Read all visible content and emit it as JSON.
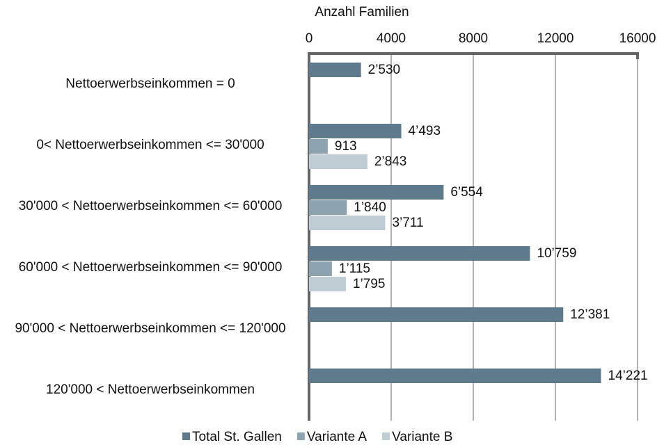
{
  "chart_data": {
    "type": "hbar",
    "x_label": "Anzahl Familien",
    "categories": [
      "Nettoerwerbseinkommen = 0",
      "0< Nettoerwerbseinkommen <= 30'000",
      "30'000 < Nettoerwerbseinkommen <= 60'000",
      "60'000 < Nettoerwerbseinkommen <= 90'000",
      "90'000 < Nettoerwerbseinkommen <= 120'000",
      "120'000 < Nettoerwerbseinkommen"
    ],
    "series": [
      {
        "name": "Total St. Gallen",
        "color": "#5f7a8c",
        "values": [
          2530,
          4493,
          6554,
          10759,
          12381,
          14221
        ],
        "value_labels": [
          "2’530",
          "4’493",
          "6’554",
          "10’759",
          "12’381",
          "14’221"
        ]
      },
      {
        "name": "Variante A",
        "color": "#8ea3b0",
        "values": [
          null,
          913,
          1840,
          1115,
          null,
          null
        ],
        "value_labels": [
          null,
          "913",
          "1’840",
          "1’115",
          null,
          null
        ]
      },
      {
        "name": "Variante B",
        "color": "#c0ccd4",
        "values": [
          null,
          2843,
          3711,
          1795,
          null,
          null
        ],
        "value_labels": [
          null,
          "2’843",
          "3’711",
          "1’795",
          null,
          null
        ]
      }
    ],
    "xlim": [
      0,
      16000
    ],
    "xticks": [
      0,
      4000,
      8000,
      12000,
      16000
    ],
    "grid": true,
    "legend": "bottom"
  }
}
